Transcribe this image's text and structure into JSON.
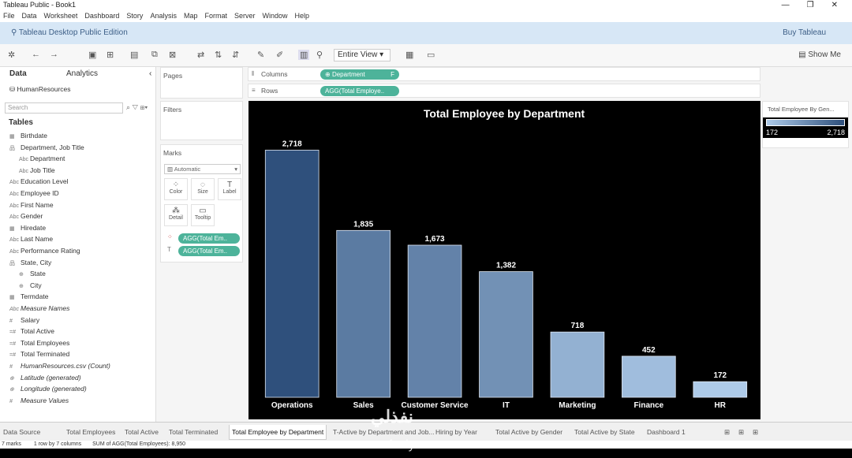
{
  "window": {
    "title": "Tableau Public - Book1"
  },
  "menu": [
    "File",
    "Data",
    "Worksheet",
    "Dashboard",
    "Story",
    "Analysis",
    "Map",
    "Format",
    "Server",
    "Window",
    "Help"
  ],
  "edition": {
    "title": "Tableau Desktop Public Edition",
    "buy": "Buy Tableau"
  },
  "toolbar": {
    "view": "Entire View",
    "show_me": "Show Me"
  },
  "data_pane": {
    "tab_data": "Data",
    "tab_analytics": "Analytics",
    "source": "HumanResources",
    "search_placeholder": "Search",
    "tables_heading": "Tables",
    "fields": [
      {
        "icon": "▦",
        "name": "Birthdate",
        "indent": 0
      },
      {
        "icon": "品",
        "name": "Department, Job Title",
        "indent": 0
      },
      {
        "icon": "Abc",
        "name": "Department",
        "indent": 1
      },
      {
        "icon": "Abc",
        "name": "Job Title",
        "indent": 1
      },
      {
        "icon": "Abc",
        "name": "Education Level",
        "indent": 0
      },
      {
        "icon": "Abc",
        "name": "Employee ID",
        "indent": 0
      },
      {
        "icon": "Abc",
        "name": "First Name",
        "indent": 0
      },
      {
        "icon": "Abc",
        "name": "Gender",
        "indent": 0
      },
      {
        "icon": "▦",
        "name": "Hiredate",
        "indent": 0
      },
      {
        "icon": "Abc",
        "name": "Last Name",
        "indent": 0
      },
      {
        "icon": "Abc",
        "name": "Performance Rating",
        "indent": 0
      },
      {
        "icon": "品",
        "name": "State, City",
        "indent": 0
      },
      {
        "icon": "⊕",
        "name": "State",
        "indent": 1
      },
      {
        "icon": "⊕",
        "name": "City",
        "indent": 1
      },
      {
        "icon": "▦",
        "name": "Termdate",
        "indent": 0
      },
      {
        "icon": "Abc",
        "name": "Measure Names",
        "indent": 0,
        "italic": true
      },
      {
        "icon": "#",
        "name": "Salary",
        "indent": 0
      },
      {
        "icon": "=#",
        "name": "Total Active",
        "indent": 0
      },
      {
        "icon": "=#",
        "name": "Total Employees",
        "indent": 0
      },
      {
        "icon": "=#",
        "name": "Total Terminated",
        "indent": 0
      },
      {
        "icon": "#",
        "name": "HumanResources.csv (Count)",
        "indent": 0,
        "italic": true
      },
      {
        "icon": "⊕",
        "name": "Latitude (generated)",
        "indent": 0,
        "italic": true
      },
      {
        "icon": "⊕",
        "name": "Longitude (generated)",
        "indent": 0,
        "italic": true
      },
      {
        "icon": "#",
        "name": "Measure Values",
        "indent": 0,
        "italic": true
      }
    ]
  },
  "cards": {
    "pages": "Pages",
    "filters": "Filters",
    "marks": "Marks",
    "mark_type": "Automatic",
    "mark_buttons": [
      "Color",
      "Size",
      "Label",
      "Detail",
      "Tooltip"
    ],
    "mark_pills": [
      "AGG(Total Em..",
      "AGG(Total Em.."
    ]
  },
  "shelves": {
    "columns_label": "Columns",
    "columns_pill": "Department",
    "rows_label": "Rows",
    "rows_pill": "AGG(Total Employe.."
  },
  "legend": {
    "title": "Total Employee By Gen...",
    "min": "172",
    "max": "2,718"
  },
  "chart_data": {
    "type": "bar",
    "title": "Total Employee by Department",
    "categories": [
      "Operations",
      "Sales",
      "Customer Service",
      "IT",
      "Marketing",
      "Finance",
      "HR"
    ],
    "values": [
      2718,
      1835,
      1673,
      1382,
      718,
      452,
      172
    ],
    "value_labels": [
      "2,718",
      "1,835",
      "1,673",
      "1,382",
      "718",
      "452",
      "172"
    ],
    "ylim": [
      0,
      3000
    ],
    "color_range": [
      "#aecbe9",
      "#2f507c"
    ]
  },
  "sheets": [
    {
      "name": "Data Source",
      "active": false
    },
    {
      "name": "Total Employees",
      "active": false
    },
    {
      "name": "Total Active",
      "active": false
    },
    {
      "name": "Total Terminated",
      "active": false
    },
    {
      "name": "Total Employee by Department",
      "active": true
    },
    {
      "name": "T-Active by Department and Job...",
      "active": false
    },
    {
      "name": "Hiring by Year",
      "active": false
    },
    {
      "name": "Total Active by Gender",
      "active": false
    },
    {
      "name": "Total Active by State",
      "active": false
    },
    {
      "name": "Dashboard 1",
      "active": false
    }
  ],
  "status": {
    "marks": "7 marks",
    "dims": "1 row by 7 columns",
    "sum": "SUM of AGG(Total Employees): 8,950"
  },
  "watermark": {
    "latin": "nafezly.com",
    "arabic": "نفذلي"
  }
}
